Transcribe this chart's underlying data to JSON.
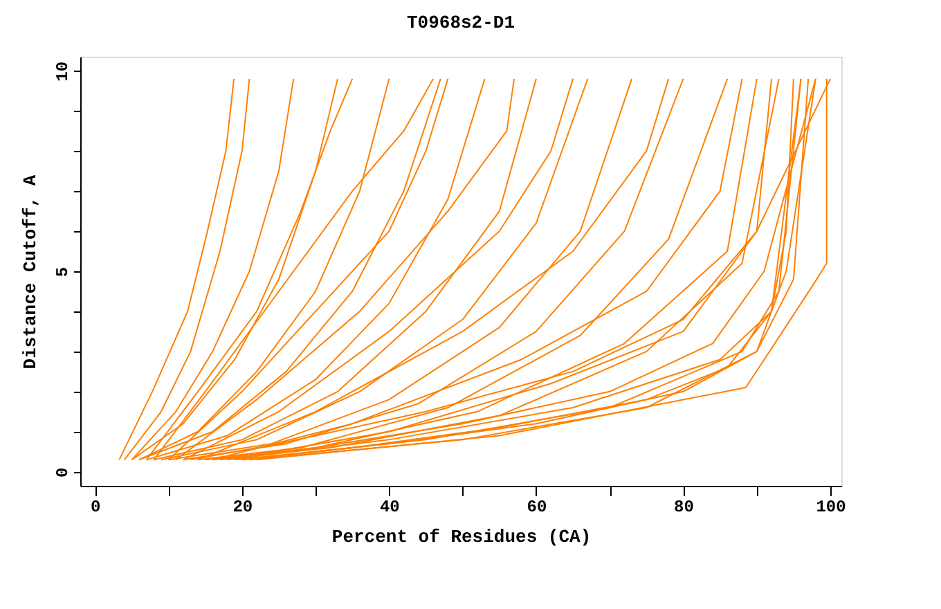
{
  "chart_data": {
    "type": "line",
    "title": "T0968s2-D1",
    "xlabel": "Percent of Residues (CA)",
    "ylabel": "Distance Cutoff, A",
    "xlim": [
      -2,
      101.5
    ],
    "ylim": [
      -0.35,
      10.35
    ],
    "xticks": [
      0,
      {
        "value": 10,
        "label": null
      },
      20,
      {
        "value": 30,
        "label": null
      },
      40,
      {
        "value": 50,
        "label": null
      },
      60,
      {
        "value": 70,
        "label": null
      },
      80,
      {
        "value": 90,
        "label": null
      },
      100
    ],
    "yticks": [
      0,
      {
        "value": 1,
        "label": null
      },
      {
        "value": 2,
        "label": null
      },
      {
        "value": 3,
        "label": null
      },
      {
        "value": 4,
        "label": null
      },
      5,
      {
        "value": 6,
        "label": null
      },
      {
        "value": 7,
        "label": null
      },
      {
        "value": 8,
        "label": null
      },
      {
        "value": 9,
        "label": null
      },
      10
    ],
    "grid": false,
    "legend": false,
    "line_style": "solid",
    "marker": "none",
    "series": [
      {
        "color": "#ff8000",
        "x": [
          3.3,
          7.8,
          12.6,
          15.3,
          17.8,
          18.9
        ],
        "values": [
          0.3,
          2,
          4,
          6,
          8,
          9.8
        ]
      },
      {
        "color": "#ff8000",
        "x": [
          4,
          9,
          13,
          17,
          20,
          21
        ],
        "values": [
          0.3,
          1.5,
          3,
          5.5,
          8,
          9.8
        ]
      },
      {
        "color": "#ff8000",
        "x": [
          5,
          11,
          16,
          21,
          25,
          27
        ],
        "values": [
          0.3,
          1.5,
          3,
          5,
          7.5,
          9.8
        ]
      },
      {
        "color": "#ff8000",
        "x": [
          5,
          12,
          19,
          25,
          30,
          33
        ],
        "values": [
          0.3,
          1.2,
          2.8,
          4.8,
          7.5,
          9.8
        ]
      },
      {
        "color": "#ff8000",
        "x": [
          6,
          14,
          22,
          30,
          36,
          40
        ],
        "values": [
          0.3,
          1,
          2.5,
          4.5,
          7,
          9.8
        ]
      },
      {
        "color": "#ff8000",
        "x": [
          6,
          16,
          26,
          35,
          42,
          47
        ],
        "values": [
          0.3,
          1,
          2.5,
          4.5,
          7,
          9.8
        ]
      },
      {
        "color": "#ff8000",
        "x": [
          7,
          18,
          30,
          40,
          48,
          53
        ],
        "values": [
          0.3,
          0.9,
          2.3,
          4.2,
          6.8,
          9.8
        ]
      },
      {
        "color": "#ff8000",
        "x": [
          8,
          20,
          33,
          45,
          55,
          60
        ],
        "values": [
          0.3,
          0.8,
          2,
          4,
          6.5,
          9.8
        ]
      },
      {
        "color": "#ff8000",
        "x": [
          9,
          22,
          36,
          50,
          60,
          67
        ],
        "values": [
          0.3,
          0.8,
          2,
          3.8,
          6.2,
          9.8
        ]
      },
      {
        "color": "#ff8000",
        "x": [
          10,
          24,
          40,
          55,
          66,
          73
        ],
        "values": [
          0.3,
          0.7,
          1.8,
          3.6,
          6,
          9.8
        ]
      },
      {
        "color": "#ff8000",
        "x": [
          12,
          26,
          44,
          60,
          72,
          80
        ],
        "values": [
          0.3,
          0.7,
          1.7,
          3.5,
          6,
          9.8
        ]
      },
      {
        "color": "#ff8000",
        "x": [
          14,
          28,
          48,
          66,
          78,
          86
        ],
        "values": [
          0.3,
          0.6,
          1.6,
          3.4,
          5.8,
          9.8
        ]
      },
      {
        "color": "#ff8000",
        "x": [
          15,
          30,
          52,
          72,
          86,
          90
        ],
        "values": [
          0.3,
          0.6,
          1.5,
          3.2,
          5.5,
          9.8
        ]
      },
      {
        "color": "#ff8000",
        "x": [
          16,
          32,
          55,
          75,
          88,
          93
        ],
        "values": [
          0.3,
          0.6,
          1.4,
          3,
          5.2,
          9.8
        ]
      },
      {
        "color": "#ff8000",
        "x": [
          18,
          40,
          65,
          85,
          92,
          94,
          95
        ],
        "values": [
          0.3,
          0.8,
          1.6,
          2.8,
          4,
          6,
          9.8
        ]
      },
      {
        "color": "#ff8000",
        "x": [
          20,
          45,
          70,
          88,
          93,
          96
        ],
        "values": [
          0.3,
          0.8,
          1.6,
          3,
          4.5,
          9.8
        ]
      },
      {
        "color": "#ff8000",
        "x": [
          21,
          50,
          75,
          90,
          95,
          97
        ],
        "values": [
          0.3,
          0.8,
          1.6,
          3,
          4.8,
          9.8
        ]
      },
      {
        "color": "#ff8000",
        "x": [
          22,
          55,
          80,
          88.5,
          90.3,
          97.8,
          99.5,
          99.5
        ],
        "values": [
          0.3,
          0.9,
          1.8,
          2.1,
          2.6,
          4.7,
          5.2,
          9.8
        ]
      },
      {
        "color": "#ff8000",
        "x": [
          20,
          40,
          60,
          80,
          90,
          94,
          98
        ],
        "values": [
          0.3,
          0.7,
          1.2,
          2,
          3,
          5,
          9.8
        ]
      },
      {
        "color": "#ff8000",
        "x": [
          19,
          35,
          55,
          75,
          86,
          92,
          96
        ],
        "values": [
          0.3,
          0.6,
          1.1,
          1.8,
          2.6,
          4,
          9.8
        ]
      },
      {
        "color": "#ff8000",
        "x": [
          17,
          30,
          50,
          70,
          84,
          91,
          98
        ],
        "values": [
          0.3,
          0.6,
          1.2,
          2,
          3.2,
          5,
          9.8
        ]
      },
      {
        "color": "#ff8000",
        "x": [
          13,
          25,
          45,
          65,
          80,
          90,
          100
        ],
        "values": [
          0.3,
          0.7,
          1.5,
          2.5,
          3.8,
          6,
          9.8
        ]
      },
      {
        "color": "#ff8000",
        "x": [
          10,
          20,
          30,
          40,
          45,
          48
        ],
        "values": [
          0.3,
          2,
          4,
          6,
          8,
          9.8
        ]
      },
      {
        "color": "#ff8000",
        "x": [
          8,
          15,
          25,
          35,
          42,
          46
        ],
        "values": [
          0.3,
          2,
          4.5,
          7,
          8.5,
          9.8
        ]
      },
      {
        "color": "#ff8000",
        "x": [
          12,
          25,
          40,
          55,
          62,
          65
        ],
        "values": [
          0.3,
          1.5,
          3.5,
          6,
          8,
          9.8
        ]
      },
      {
        "color": "#ff8000",
        "x": [
          14,
          30,
          50,
          65,
          75,
          78
        ],
        "values": [
          0.3,
          1.5,
          3.5,
          5.5,
          8,
          9.8
        ]
      },
      {
        "color": "#ff8000",
        "x": [
          16,
          35,
          58,
          75,
          85,
          88
        ],
        "values": [
          0.3,
          1.2,
          2.8,
          4.5,
          7,
          9.8
        ]
      },
      {
        "color": "#ff8000",
        "x": [
          7,
          14,
          22,
          28,
          32,
          35
        ],
        "values": [
          0.3,
          2,
          4,
          6.5,
          8.5,
          9.8
        ]
      },
      {
        "color": "#ff8000",
        "x": [
          18,
          40,
          62,
          80,
          90,
          92
        ],
        "values": [
          0.3,
          1,
          2.2,
          3.5,
          6,
          9.8
        ]
      },
      {
        "color": "#ff8000",
        "x": [
          11,
          22,
          36,
          48,
          56,
          57
        ],
        "values": [
          0.3,
          1.8,
          4,
          6.5,
          8.5,
          9.8
        ]
      }
    ]
  }
}
